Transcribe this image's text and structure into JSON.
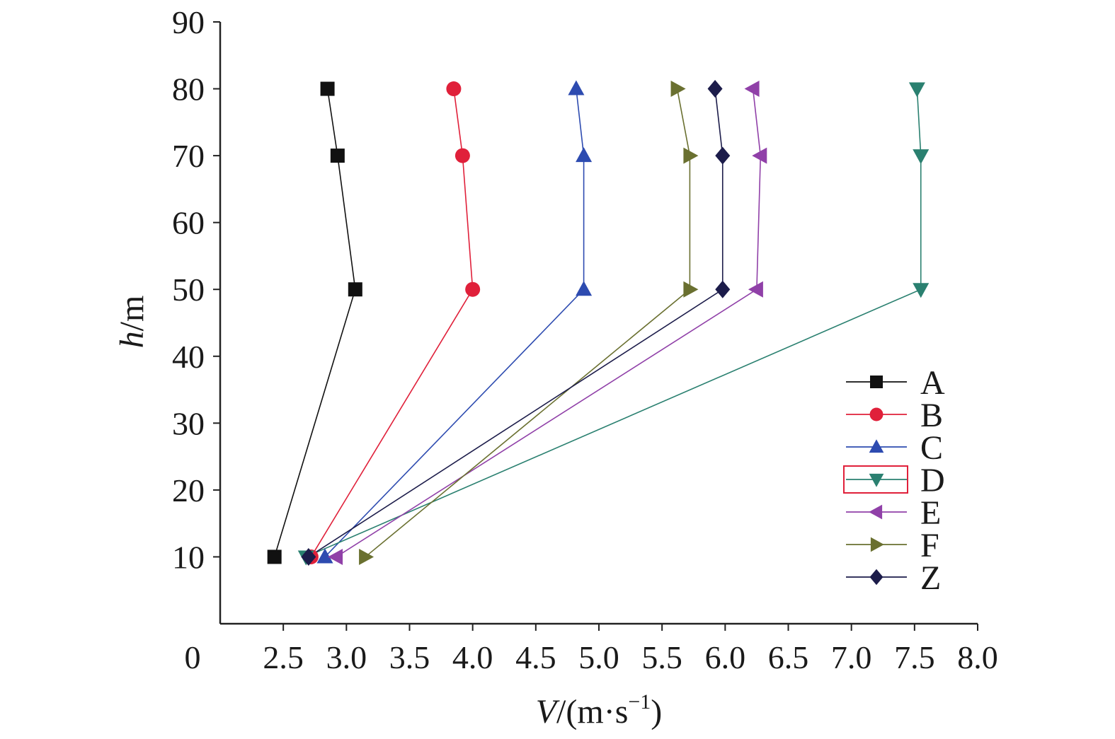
{
  "chart_data": {
    "type": "line",
    "xlabel": {
      "italic": "V",
      "text": "/(m·s",
      "sup": "−1",
      "close": ")"
    },
    "ylabel": {
      "italic": "h",
      "text": "/m"
    },
    "xlim": [
      2.0,
      8.0
    ],
    "ylim": [
      0,
      90
    ],
    "x_origin_label": "0",
    "x_ticks": [
      "2.5",
      "3.0",
      "3.5",
      "4.0",
      "4.5",
      "5.0",
      "5.5",
      "6.0",
      "6.5",
      "7.0",
      "7.5",
      "8.0"
    ],
    "y_ticks": [
      "10",
      "20",
      "30",
      "40",
      "50",
      "60",
      "70",
      "80",
      "90"
    ],
    "grid": false,
    "legend_position": "lower-right",
    "series": [
      {
        "name": "A",
        "color": "#111111",
        "marker": "square",
        "x": [
          2.43,
          3.07,
          2.93,
          2.85
        ],
        "y": [
          10,
          50,
          70,
          80
        ]
      },
      {
        "name": "B",
        "color": "#e0203a",
        "marker": "circle",
        "x": [
          2.72,
          4.0,
          3.92,
          3.85
        ],
        "y": [
          10,
          50,
          70,
          80
        ]
      },
      {
        "name": "C",
        "color": "#2d4bb0",
        "marker": "triangle-up",
        "x": [
          2.83,
          4.88,
          4.88,
          4.82
        ],
        "y": [
          10,
          50,
          70,
          80
        ]
      },
      {
        "name": "D",
        "color": "#2a8070",
        "marker": "triangle-down",
        "x": [
          2.68,
          7.55,
          7.55,
          7.52
        ],
        "y": [
          10,
          50,
          70,
          80
        ]
      },
      {
        "name": "E",
        "color": "#9040a8",
        "marker": "triangle-left",
        "x": [
          2.92,
          6.25,
          6.28,
          6.22
        ],
        "y": [
          10,
          50,
          70,
          80
        ]
      },
      {
        "name": "F",
        "color": "#6a7030",
        "marker": "triangle-right",
        "x": [
          3.15,
          5.72,
          5.72,
          5.62
        ],
        "y": [
          10,
          50,
          70,
          80
        ]
      },
      {
        "name": "Z",
        "color": "#1c1c4a",
        "marker": "diamond",
        "x": [
          2.7,
          5.98,
          5.98,
          5.92
        ],
        "y": [
          10,
          50,
          70,
          80
        ]
      }
    ]
  }
}
